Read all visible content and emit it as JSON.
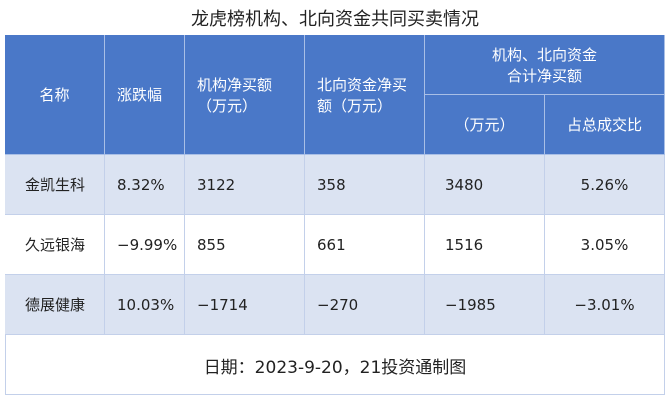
{
  "title": "龙虎榜机构、北向资金共同买卖情况",
  "table": {
    "header": {
      "name": "名称",
      "change": "涨跌幅",
      "inst": "机构净买额\n（万元）",
      "north": "北向资金净买\n额（万元）",
      "group": "机构、北向资金\n合计净买额",
      "group_unit": "（万元）",
      "group_ratio": "占总成交比"
    },
    "rows": [
      [
        "金凯生科",
        "8.32%",
        "3122",
        "358",
        "3480",
        "5.26%"
      ],
      [
        "久远银海",
        "−9.99%",
        "855",
        "661",
        "1516",
        "3.05%"
      ],
      [
        "德展健康",
        "10.03%",
        "−1714",
        "−270",
        "−1985",
        "−3.01%"
      ]
    ]
  },
  "footer": "日期：2023-9-20，21投资通制图"
}
